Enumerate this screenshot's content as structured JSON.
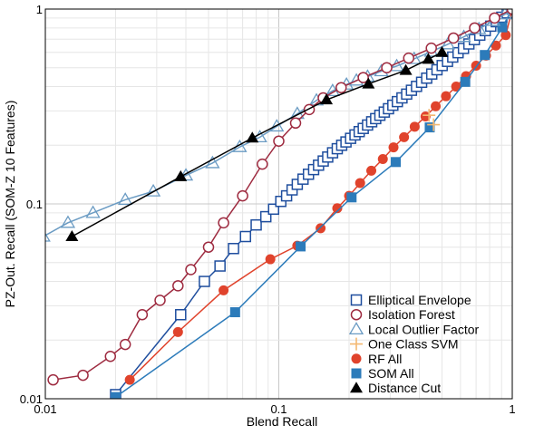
{
  "chart_data": {
    "type": "scatter",
    "xscale": "log",
    "yscale": "log",
    "xlim": [
      0.01,
      1
    ],
    "ylim": [
      0.01,
      1
    ],
    "xlabel": "Blend Recall",
    "ylabel": "PZ-Out. Recall (SOM-Z 10 Features)",
    "xticks": [
      {
        "v": 0.01,
        "label": "0.01"
      },
      {
        "v": 0.1,
        "label": "0.1"
      },
      {
        "v": 1,
        "label": "1"
      }
    ],
    "yticks": [
      {
        "v": 0.01,
        "label": "0.01"
      },
      {
        "v": 0.1,
        "label": "0.1"
      },
      {
        "v": 1,
        "label": "1"
      }
    ],
    "grid": true,
    "legend_position": "bottom-right",
    "series": [
      {
        "name": "Elliptical Envelope",
        "color": "#1f4e9e",
        "marker": "square-open",
        "points": [
          [
            0.02,
            0.0105
          ],
          [
            0.038,
            0.027
          ],
          [
            0.048,
            0.04
          ],
          [
            0.056,
            0.048
          ],
          [
            0.064,
            0.059
          ],
          [
            0.072,
            0.068
          ],
          [
            0.08,
            0.078
          ],
          [
            0.088,
            0.086
          ],
          [
            0.095,
            0.094
          ],
          [
            0.102,
            0.103
          ],
          [
            0.108,
            0.11
          ],
          [
            0.114,
            0.118
          ],
          [
            0.12,
            0.126
          ],
          [
            0.127,
            0.134
          ],
          [
            0.134,
            0.142
          ],
          [
            0.141,
            0.15
          ],
          [
            0.148,
            0.158
          ],
          [
            0.155,
            0.166
          ],
          [
            0.162,
            0.174
          ],
          [
            0.17,
            0.183
          ],
          [
            0.178,
            0.192
          ],
          [
            0.186,
            0.2
          ],
          [
            0.194,
            0.208
          ],
          [
            0.203,
            0.217
          ],
          [
            0.212,
            0.226
          ],
          [
            0.221,
            0.235
          ],
          [
            0.23,
            0.244
          ],
          [
            0.24,
            0.254
          ],
          [
            0.25,
            0.264
          ],
          [
            0.26,
            0.274
          ],
          [
            0.271,
            0.285
          ],
          [
            0.283,
            0.296
          ],
          [
            0.295,
            0.308
          ],
          [
            0.308,
            0.321
          ],
          [
            0.322,
            0.335
          ],
          [
            0.337,
            0.35
          ],
          [
            0.353,
            0.366
          ],
          [
            0.37,
            0.383
          ],
          [
            0.389,
            0.401
          ],
          [
            0.409,
            0.421
          ],
          [
            0.43,
            0.442
          ],
          [
            0.452,
            0.464
          ],
          [
            0.476,
            0.488
          ],
          [
            0.501,
            0.513
          ],
          [
            0.528,
            0.539
          ],
          [
            0.556,
            0.567
          ],
          [
            0.586,
            0.597
          ],
          [
            0.618,
            0.628
          ],
          [
            0.652,
            0.662
          ],
          [
            0.688,
            0.697
          ],
          [
            0.726,
            0.735
          ],
          [
            0.766,
            0.775
          ],
          [
            0.809,
            0.817
          ],
          [
            0.854,
            0.861
          ],
          [
            0.902,
            0.908
          ],
          [
            0.952,
            0.955
          ],
          [
            1.0,
            1.0
          ]
        ]
      },
      {
        "name": "Isolation Forest",
        "color": "#9e2b40",
        "marker": "circle-open",
        "points": [
          [
            0.0108,
            0.0125
          ],
          [
            0.0145,
            0.0132
          ],
          [
            0.019,
            0.0165
          ],
          [
            0.022,
            0.019
          ],
          [
            0.026,
            0.027
          ],
          [
            0.031,
            0.032
          ],
          [
            0.037,
            0.038
          ],
          [
            0.042,
            0.046
          ],
          [
            0.05,
            0.06
          ],
          [
            0.058,
            0.08
          ],
          [
            0.07,
            0.11
          ],
          [
            0.085,
            0.16
          ],
          [
            0.1,
            0.21
          ],
          [
            0.118,
            0.26
          ],
          [
            0.135,
            0.305
          ],
          [
            0.155,
            0.35
          ],
          [
            0.185,
            0.395
          ],
          [
            0.23,
            0.445
          ],
          [
            0.29,
            0.5
          ],
          [
            0.36,
            0.56
          ],
          [
            0.45,
            0.63
          ],
          [
            0.56,
            0.71
          ],
          [
            0.69,
            0.8
          ],
          [
            0.84,
            0.9
          ],
          [
            1.0,
            1.0
          ]
        ]
      },
      {
        "name": "Local Outlier Factor",
        "color": "#6a9bc3",
        "marker": "triangle-open",
        "points": [
          [
            0.0098,
            0.068
          ],
          [
            0.0125,
            0.08
          ],
          [
            0.016,
            0.09
          ],
          [
            0.022,
            0.105
          ],
          [
            0.029,
            0.116
          ],
          [
            0.04,
            0.14
          ],
          [
            0.052,
            0.162
          ],
          [
            0.068,
            0.196
          ],
          [
            0.083,
            0.22
          ],
          [
            0.098,
            0.25
          ],
          [
            0.12,
            0.29
          ],
          [
            0.145,
            0.34
          ],
          [
            0.17,
            0.38
          ],
          [
            0.195,
            0.41
          ],
          [
            0.215,
            0.43
          ],
          [
            0.24,
            0.45
          ],
          [
            0.275,
            0.48
          ],
          [
            0.32,
            0.51
          ],
          [
            0.38,
            0.555
          ],
          [
            0.45,
            0.605
          ],
          [
            0.53,
            0.66
          ],
          [
            0.62,
            0.72
          ],
          [
            0.72,
            0.79
          ],
          [
            0.83,
            0.87
          ],
          [
            0.93,
            0.94
          ],
          [
            1.0,
            1.0
          ]
        ]
      },
      {
        "name": "One Class SVM",
        "color": "#f4b870",
        "marker": "plus",
        "points": [
          [
            0.44,
            0.285
          ],
          [
            0.46,
            0.255
          ]
        ]
      },
      {
        "name": "RF All",
        "color": "#e0432c",
        "marker": "circle-filled",
        "points": [
          [
            0.023,
            0.0125
          ],
          [
            0.037,
            0.022
          ],
          [
            0.058,
            0.036
          ],
          [
            0.092,
            0.052
          ],
          [
            0.12,
            0.061
          ],
          [
            0.151,
            0.075
          ],
          [
            0.178,
            0.095
          ],
          [
            0.2,
            0.11
          ],
          [
            0.223,
            0.128
          ],
          [
            0.249,
            0.148
          ],
          [
            0.279,
            0.17
          ],
          [
            0.31,
            0.195
          ],
          [
            0.344,
            0.22
          ],
          [
            0.382,
            0.249
          ],
          [
            0.425,
            0.281
          ],
          [
            0.47,
            0.317
          ],
          [
            0.52,
            0.357
          ],
          [
            0.575,
            0.4
          ],
          [
            0.634,
            0.453
          ],
          [
            0.7,
            0.512
          ],
          [
            0.772,
            0.577
          ],
          [
            0.851,
            0.65
          ],
          [
            0.938,
            0.735
          ],
          [
            1.0,
            1.0
          ]
        ]
      },
      {
        "name": "SOM All",
        "color": "#2c7bba",
        "marker": "square-filled",
        "points": [
          [
            0.02,
            0.0102
          ],
          [
            0.065,
            0.0278
          ],
          [
            0.124,
            0.0605
          ],
          [
            0.205,
            0.108
          ],
          [
            0.317,
            0.164
          ],
          [
            0.443,
            0.247
          ],
          [
            0.629,
            0.423
          ],
          [
            0.763,
            0.581
          ],
          [
            0.906,
            0.806
          ],
          [
            1.0,
            1.0
          ]
        ]
      },
      {
        "name": "Distance Cut",
        "color": "#000000",
        "marker": "triangle-filled",
        "points": [
          [
            0.013,
            0.068
          ],
          [
            0.038,
            0.138
          ],
          [
            0.077,
            0.218
          ],
          [
            0.16,
            0.342
          ],
          [
            0.242,
            0.413
          ],
          [
            0.35,
            0.485
          ],
          [
            0.437,
            0.553
          ],
          [
            0.5,
            0.6
          ]
        ]
      }
    ]
  }
}
